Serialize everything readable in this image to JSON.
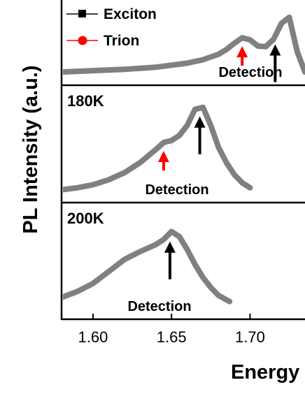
{
  "chart_data": {
    "type": "line",
    "ylabel": "PL Intensity (a.u.)",
    "xlabel": "Energy",
    "xlim": [
      1.58,
      1.735
    ],
    "xticks": [
      "1.60",
      "1.65",
      "1.70"
    ],
    "legend": {
      "placement": "top-left",
      "entries": [
        {
          "name": "Exciton",
          "color": "#000000",
          "marker": "square"
        },
        {
          "name": "Trion",
          "color": "#ff0000",
          "marker": "circle"
        }
      ]
    },
    "panels": [
      {
        "temperature_label": "",
        "curve_color": "#808080",
        "x": [
          1.58,
          1.6,
          1.62,
          1.64,
          1.66,
          1.67,
          1.68,
          1.685,
          1.69,
          1.695,
          1.7,
          1.705,
          1.71,
          1.715,
          1.72,
          1.725,
          1.73,
          1.735
        ],
        "y": [
          0.05,
          0.07,
          0.09,
          0.12,
          0.18,
          0.23,
          0.31,
          0.38,
          0.47,
          0.55,
          0.52,
          0.43,
          0.42,
          0.53,
          0.76,
          0.85,
          0.35,
          0.05
        ],
        "arrows": [
          {
            "series": "Trion",
            "x": 1.695,
            "color": "#ff0000"
          },
          {
            "series": "Exciton",
            "x": 1.716,
            "color": "#000000"
          }
        ],
        "annotation": "Detection"
      },
      {
        "temperature_label": "180K",
        "curve_color": "#808080",
        "x": [
          1.58,
          1.59,
          1.6,
          1.61,
          1.62,
          1.63,
          1.64,
          1.645,
          1.65,
          1.655,
          1.66,
          1.665,
          1.67,
          1.675,
          1.68,
          1.685,
          1.69,
          1.695,
          1.7
        ],
        "y": [
          0.03,
          0.05,
          0.08,
          0.13,
          0.2,
          0.3,
          0.43,
          0.5,
          0.52,
          0.57,
          0.67,
          0.83,
          0.85,
          0.67,
          0.45,
          0.3,
          0.18,
          0.1,
          0.05
        ],
        "arrows": [
          {
            "series": "Trion",
            "x": 1.645,
            "color": "#ff0000"
          },
          {
            "series": "Exciton",
            "x": 1.668,
            "color": "#000000"
          }
        ],
        "annotation": "Detection"
      },
      {
        "temperature_label": "200K",
        "curve_color": "#808080",
        "x": [
          1.58,
          1.59,
          1.6,
          1.61,
          1.62,
          1.63,
          1.64,
          1.645,
          1.65,
          1.655,
          1.66,
          1.665,
          1.67,
          1.675,
          1.68,
          1.687
        ],
        "y": [
          0.12,
          0.18,
          0.26,
          0.38,
          0.5,
          0.58,
          0.65,
          0.7,
          0.78,
          0.73,
          0.6,
          0.45,
          0.32,
          0.22,
          0.14,
          0.08
        ],
        "arrows": [
          {
            "series": "Exciton",
            "x": 1.649,
            "color": "#000000"
          }
        ],
        "annotation": "Detection"
      }
    ]
  }
}
